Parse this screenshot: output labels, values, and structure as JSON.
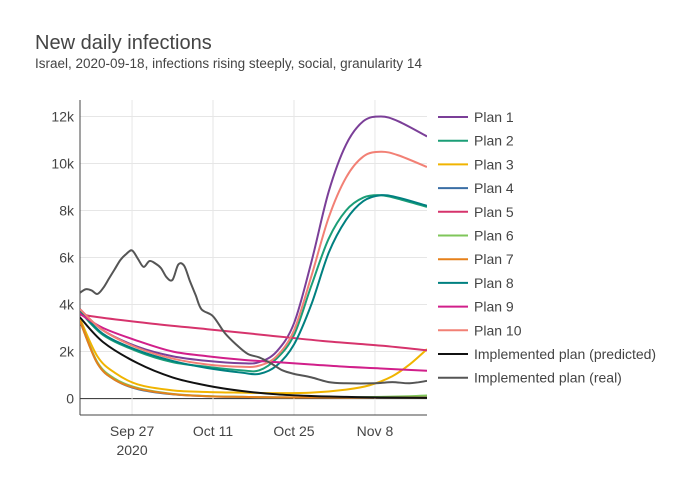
{
  "chart_data": {
    "type": "line",
    "title": "New daily infections",
    "subtitle": "Israel, 2020-09-18, infections rising steeply, social, granularity 14",
    "xlabel": "",
    "ylabel": "",
    "x_start": "2020-09-18",
    "x_end": "2020-11-17",
    "xlim": [
      "2020-09-18",
      "2020-11-17"
    ],
    "ylim": [
      -700,
      12700
    ],
    "x_ticks": [
      {
        "date": "2020-09-27",
        "label": "Sep 27",
        "sublabel": "2020"
      },
      {
        "date": "2020-10-11",
        "label": "Oct 11",
        "sublabel": ""
      },
      {
        "date": "2020-10-25",
        "label": "Oct 25",
        "sublabel": ""
      },
      {
        "date": "2020-11-08",
        "label": "Nov 8",
        "sublabel": ""
      }
    ],
    "y_ticks": [
      {
        "value": 0,
        "label": "0"
      },
      {
        "value": 2000,
        "label": "2k"
      },
      {
        "value": 4000,
        "label": "4k"
      },
      {
        "value": 6000,
        "label": "6k"
      },
      {
        "value": 8000,
        "label": "8k"
      },
      {
        "value": 10000,
        "label": "10k"
      },
      {
        "value": 12000,
        "label": "12k"
      }
    ],
    "grid": true,
    "legend_position": "right",
    "series": [
      {
        "name": "Plan 1",
        "color": "#7b3f98",
        "points": [
          [
            "2020-09-18",
            3800
          ],
          [
            "2020-09-22",
            2900
          ],
          [
            "2020-09-28",
            2200
          ],
          [
            "2020-10-04",
            1800
          ],
          [
            "2020-10-10",
            1600
          ],
          [
            "2020-10-16",
            1500
          ],
          [
            "2020-10-19",
            1550
          ],
          [
            "2020-10-22",
            2000
          ],
          [
            "2020-10-25",
            3200
          ],
          [
            "2020-10-28",
            5800
          ],
          [
            "2020-10-31",
            8800
          ],
          [
            "2020-11-03",
            10800
          ],
          [
            "2020-11-06",
            11800
          ],
          [
            "2020-11-09",
            12000
          ],
          [
            "2020-11-12",
            11800
          ],
          [
            "2020-11-17",
            11150
          ]
        ]
      },
      {
        "name": "Plan 2",
        "color": "#1b9e77",
        "points": [
          [
            "2020-09-18",
            3700
          ],
          [
            "2020-09-22",
            2700
          ],
          [
            "2020-09-28",
            2000
          ],
          [
            "2020-10-04",
            1550
          ],
          [
            "2020-10-10",
            1350
          ],
          [
            "2020-10-16",
            1200
          ],
          [
            "2020-10-19",
            1200
          ],
          [
            "2020-10-22",
            1700
          ],
          [
            "2020-10-25",
            2700
          ],
          [
            "2020-10-28",
            4800
          ],
          [
            "2020-10-31",
            6800
          ],
          [
            "2020-11-03",
            8000
          ],
          [
            "2020-11-06",
            8550
          ],
          [
            "2020-11-09",
            8650
          ],
          [
            "2020-11-12",
            8500
          ],
          [
            "2020-11-17",
            8150
          ]
        ]
      },
      {
        "name": "Plan 3",
        "color": "#f0b400",
        "points": [
          [
            "2020-09-18",
            3400
          ],
          [
            "2020-09-21",
            1800
          ],
          [
            "2020-09-24",
            1100
          ],
          [
            "2020-09-28",
            600
          ],
          [
            "2020-10-04",
            350
          ],
          [
            "2020-10-10",
            280
          ],
          [
            "2020-10-16",
            250
          ],
          [
            "2020-10-22",
            230
          ],
          [
            "2020-10-28",
            250
          ],
          [
            "2020-11-03",
            380
          ],
          [
            "2020-11-07",
            560
          ],
          [
            "2020-11-11",
            950
          ],
          [
            "2020-11-14",
            1450
          ],
          [
            "2020-11-17",
            2100
          ]
        ]
      },
      {
        "name": "Plan 4",
        "color": "#3a6ea5",
        "points": [
          [
            "2020-09-18",
            3300
          ],
          [
            "2020-09-21",
            1500
          ],
          [
            "2020-09-24",
            800
          ],
          [
            "2020-09-28",
            400
          ],
          [
            "2020-10-04",
            180
          ],
          [
            "2020-10-10",
            100
          ],
          [
            "2020-10-16",
            70
          ],
          [
            "2020-10-22",
            50
          ],
          [
            "2020-10-28",
            45
          ],
          [
            "2020-11-03",
            40
          ],
          [
            "2020-11-10",
            38
          ],
          [
            "2020-11-17",
            35
          ]
        ]
      },
      {
        "name": "Plan 5",
        "color": "#d6336c",
        "points": [
          [
            "2020-09-18",
            3650
          ],
          [
            "2020-09-20",
            3500
          ],
          [
            "2020-09-30",
            3200
          ],
          [
            "2020-10-10",
            2950
          ],
          [
            "2020-10-20",
            2700
          ],
          [
            "2020-10-30",
            2450
          ],
          [
            "2020-11-09",
            2250
          ],
          [
            "2020-11-17",
            2050
          ]
        ]
      },
      {
        "name": "Plan 6",
        "color": "#7fc65a",
        "points": [
          [
            "2020-09-18",
            3300
          ],
          [
            "2020-09-21",
            1550
          ],
          [
            "2020-09-24",
            850
          ],
          [
            "2020-09-28",
            450
          ],
          [
            "2020-10-04",
            200
          ],
          [
            "2020-10-10",
            110
          ],
          [
            "2020-10-16",
            70
          ],
          [
            "2020-10-22",
            50
          ],
          [
            "2020-10-28",
            45
          ],
          [
            "2020-11-03",
            50
          ],
          [
            "2020-11-09",
            70
          ],
          [
            "2020-11-14",
            100
          ],
          [
            "2020-11-17",
            130
          ]
        ]
      },
      {
        "name": "Plan 7",
        "color": "#e6801a",
        "points": [
          [
            "2020-09-18",
            3300
          ],
          [
            "2020-09-21",
            1500
          ],
          [
            "2020-09-24",
            800
          ],
          [
            "2020-09-28",
            420
          ],
          [
            "2020-10-04",
            190
          ],
          [
            "2020-10-10",
            100
          ],
          [
            "2020-10-16",
            70
          ],
          [
            "2020-10-22",
            50
          ],
          [
            "2020-10-28",
            45
          ],
          [
            "2020-11-03",
            40
          ],
          [
            "2020-11-10",
            38
          ],
          [
            "2020-11-17",
            35
          ]
        ]
      },
      {
        "name": "Plan 8",
        "color": "#008080",
        "points": [
          [
            "2020-09-18",
            3750
          ],
          [
            "2020-09-22",
            2750
          ],
          [
            "2020-09-28",
            2050
          ],
          [
            "2020-10-04",
            1600
          ],
          [
            "2020-10-10",
            1300
          ],
          [
            "2020-10-16",
            1100
          ],
          [
            "2020-10-19",
            1050
          ],
          [
            "2020-10-22",
            1400
          ],
          [
            "2020-10-25",
            2300
          ],
          [
            "2020-10-28",
            4000
          ],
          [
            "2020-10-31",
            6200
          ],
          [
            "2020-11-03",
            7600
          ],
          [
            "2020-11-06",
            8400
          ],
          [
            "2020-11-09",
            8650
          ],
          [
            "2020-11-12",
            8550
          ],
          [
            "2020-11-17",
            8200
          ]
        ]
      },
      {
        "name": "Plan 9",
        "color": "#d11f8a",
        "points": [
          [
            "2020-09-18",
            3600
          ],
          [
            "2020-09-22",
            3000
          ],
          [
            "2020-09-28",
            2450
          ],
          [
            "2020-10-04",
            2000
          ],
          [
            "2020-10-10",
            1800
          ],
          [
            "2020-10-16",
            1650
          ],
          [
            "2020-10-22",
            1550
          ],
          [
            "2020-10-28",
            1450
          ],
          [
            "2020-11-03",
            1350
          ],
          [
            "2020-11-09",
            1280
          ],
          [
            "2020-11-17",
            1180
          ]
        ]
      },
      {
        "name": "Plan 10",
        "color": "#f28075",
        "points": [
          [
            "2020-09-18",
            3800
          ],
          [
            "2020-09-22",
            2900
          ],
          [
            "2020-09-28",
            2150
          ],
          [
            "2020-10-04",
            1700
          ],
          [
            "2020-10-10",
            1450
          ],
          [
            "2020-10-16",
            1350
          ],
          [
            "2020-10-19",
            1400
          ],
          [
            "2020-10-22",
            1800
          ],
          [
            "2020-10-25",
            2900
          ],
          [
            "2020-10-28",
            5200
          ],
          [
            "2020-10-31",
            7700
          ],
          [
            "2020-11-03",
            9400
          ],
          [
            "2020-11-06",
            10300
          ],
          [
            "2020-11-09",
            10500
          ],
          [
            "2020-11-12",
            10350
          ],
          [
            "2020-11-17",
            9850
          ]
        ]
      },
      {
        "name": "Implemented plan (predicted)",
        "color": "#111111",
        "points": [
          [
            "2020-09-18",
            3450
          ],
          [
            "2020-09-22",
            2400
          ],
          [
            "2020-09-28",
            1500
          ],
          [
            "2020-10-04",
            900
          ],
          [
            "2020-10-10",
            550
          ],
          [
            "2020-10-16",
            320
          ],
          [
            "2020-10-22",
            180
          ],
          [
            "2020-10-28",
            110
          ],
          [
            "2020-11-03",
            70
          ],
          [
            "2020-11-09",
            45
          ],
          [
            "2020-11-17",
            30
          ]
        ]
      },
      {
        "name": "Implemented plan (real)",
        "color": "#555555",
        "points": [
          [
            "2020-09-18",
            4500
          ],
          [
            "2020-09-19",
            4650
          ],
          [
            "2020-09-20",
            4600
          ],
          [
            "2020-09-21",
            4450
          ],
          [
            "2020-09-22",
            4700
          ],
          [
            "2020-09-23",
            5100
          ],
          [
            "2020-09-24",
            5500
          ],
          [
            "2020-09-25",
            5900
          ],
          [
            "2020-09-26",
            6150
          ],
          [
            "2020-09-27",
            6300
          ],
          [
            "2020-09-28",
            5950
          ],
          [
            "2020-09-29",
            5600
          ],
          [
            "2020-09-30",
            5850
          ],
          [
            "2020-10-01",
            5750
          ],
          [
            "2020-10-02",
            5550
          ],
          [
            "2020-10-03",
            5150
          ],
          [
            "2020-10-04",
            5050
          ],
          [
            "2020-10-05",
            5700
          ],
          [
            "2020-10-06",
            5650
          ],
          [
            "2020-10-07",
            5000
          ],
          [
            "2020-10-08",
            4400
          ],
          [
            "2020-10-09",
            3800
          ],
          [
            "2020-10-11",
            3500
          ],
          [
            "2020-10-13",
            2800
          ],
          [
            "2020-10-15",
            2300
          ],
          [
            "2020-10-17",
            1900
          ],
          [
            "2020-10-19",
            1750
          ],
          [
            "2020-10-21",
            1500
          ],
          [
            "2020-10-23",
            1200
          ],
          [
            "2020-10-25",
            1050
          ],
          [
            "2020-10-28",
            900
          ],
          [
            "2020-10-31",
            700
          ],
          [
            "2020-11-03",
            650
          ],
          [
            "2020-11-08",
            650
          ],
          [
            "2020-11-11",
            700
          ],
          [
            "2020-11-14",
            650
          ],
          [
            "2020-11-17",
            750
          ]
        ]
      }
    ]
  }
}
